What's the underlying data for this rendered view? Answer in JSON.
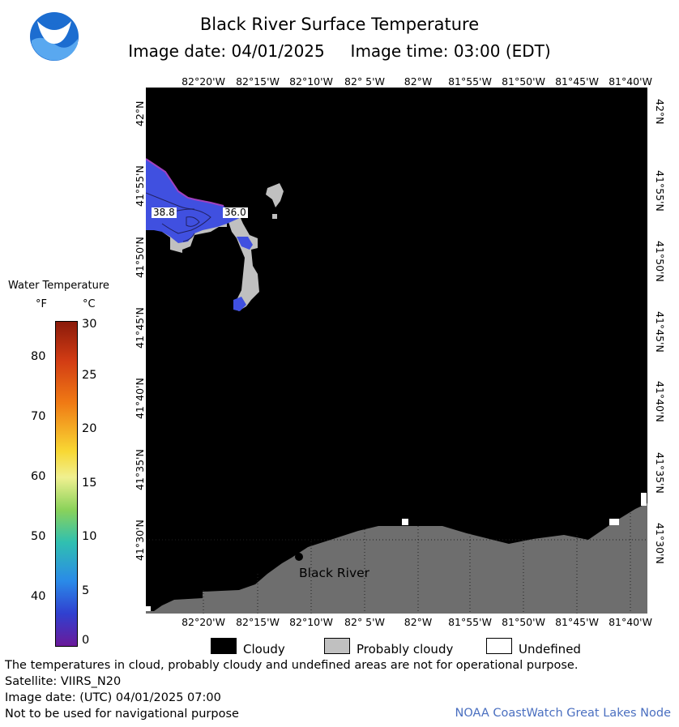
{
  "header": {
    "title": "Black River Surface Temperature",
    "subtitle": "Image date: 04/01/2025     Image time: 03:00 (EDT)"
  },
  "logo": {
    "text": "NOAA",
    "icon": "noaa-logo-icon"
  },
  "map": {
    "lon_labels": [
      "82°20'W",
      "82°15'W",
      "82°10'W",
      "82° 5'W",
      "82°W",
      "81°55'W",
      "81°50'W",
      "81°45'W",
      "81°40'W"
    ],
    "lat_labels": [
      "42°N",
      "41°55'N",
      "41°50'N",
      "41°45'N",
      "41°40'N",
      "41°35'N",
      "41°30'N"
    ],
    "place_label": "Black River",
    "contour_labels": [
      "38.8",
      "36.0"
    ],
    "colors": {
      "cloud": "#000000",
      "probably_cloudy": "#c0c0c0",
      "land": "#6e6e6e",
      "water": "#4050e0",
      "undefined": "#ffffff"
    }
  },
  "legend": {
    "title": "Water Temperature",
    "unit_f": "°F",
    "unit_c": "°C",
    "f_ticks": [
      "80",
      "70",
      "60",
      "50",
      "40"
    ],
    "c_ticks": [
      "30",
      "25",
      "20",
      "15",
      "10",
      "5",
      "0"
    ]
  },
  "key": {
    "items": [
      {
        "label": "Cloudy",
        "color": "#000000"
      },
      {
        "label": "Probably cloudy",
        "color": "#c0c0c0"
      },
      {
        "label": "Undefined",
        "color": "#ffffff"
      }
    ]
  },
  "footer": {
    "disclaimer": "The temperatures in cloud, probably cloudy and undefined areas are not for operational purpose.",
    "satellite": "Satellite: VIIRS_N20",
    "image_date": "Image date: (UTC) 04/01/2025  07:00",
    "nav_note": "Not to be used for navigational purpose",
    "credit": "NOAA CoastWatch Great Lakes Node",
    "credit_color": "#4a6fc0"
  }
}
